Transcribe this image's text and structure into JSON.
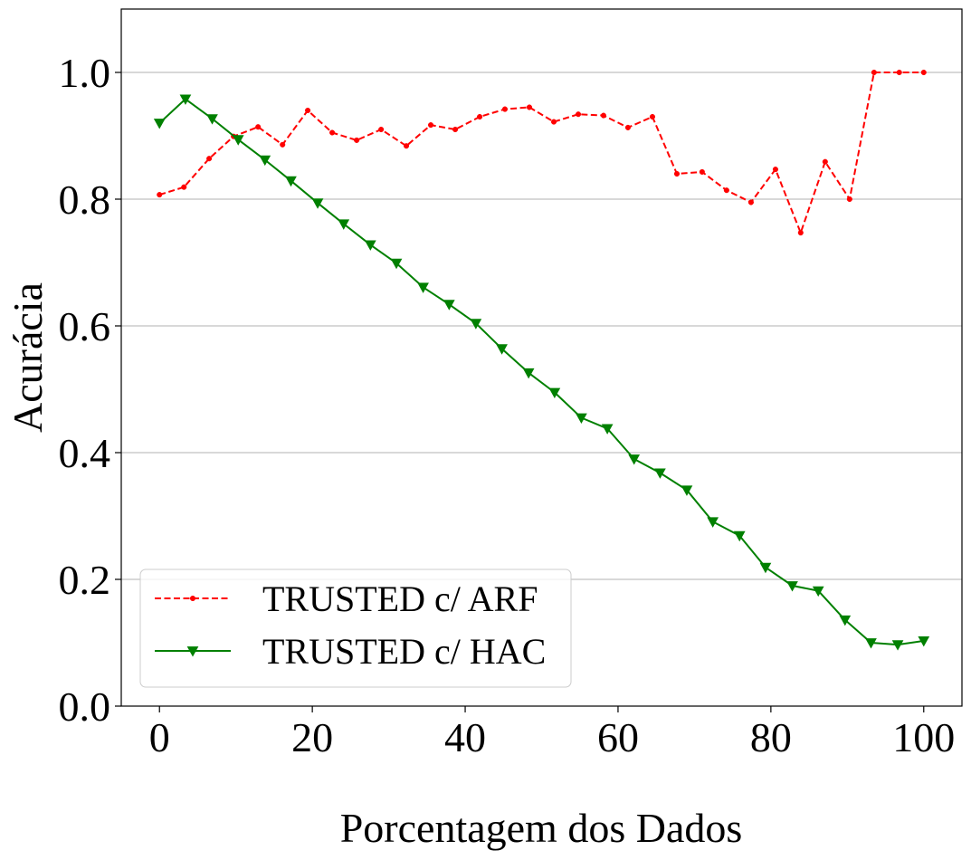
{
  "chart_data": {
    "type": "line",
    "xlabel": "Porcentagem dos Dados",
    "ylabel": "Acurácia",
    "xlim": [
      -5,
      105
    ],
    "ylim": [
      0.0,
      1.1
    ],
    "xticks": [
      0,
      20,
      40,
      60,
      80,
      100
    ],
    "xtick_labels": [
      "0",
      "20",
      "40",
      "60",
      "80",
      "100"
    ],
    "yticks": [
      0.0,
      0.2,
      0.4,
      0.6,
      0.8,
      1.0
    ],
    "ytick_labels": [
      "0.0",
      "0.2",
      "0.4",
      "0.6",
      "0.8",
      "1.0"
    ],
    "grid": "horizontal",
    "legend_position": "lower-left",
    "series": [
      {
        "name": "TRUSTED c/ ARF",
        "color": "#ff0000",
        "line_style": "dashed",
        "marker": "dot",
        "x": [
          0,
          3.2,
          6.5,
          9.7,
          12.9,
          16.1,
          19.4,
          22.6,
          25.8,
          29.0,
          32.3,
          35.5,
          38.7,
          41.9,
          45.2,
          48.4,
          51.6,
          54.8,
          58.1,
          61.3,
          64.5,
          67.7,
          71.0,
          74.2,
          77.4,
          80.6,
          83.9,
          87.1,
          90.3,
          93.5,
          96.8,
          100
        ],
        "y": [
          0.807,
          0.819,
          0.864,
          0.899,
          0.914,
          0.886,
          0.94,
          0.905,
          0.893,
          0.91,
          0.884,
          0.917,
          0.91,
          0.93,
          0.942,
          0.945,
          0.922,
          0.934,
          0.932,
          0.913,
          0.93,
          0.84,
          0.843,
          0.814,
          0.795,
          0.847,
          0.747,
          0.859,
          0.8,
          1.0,
          1.0,
          1.0
        ]
      },
      {
        "name": "TRUSTED c/ HAC",
        "color": "#008000",
        "line_style": "solid",
        "marker": "triangle-down",
        "x": [
          0,
          3.4,
          6.9,
          10.3,
          13.8,
          17.2,
          20.7,
          24.1,
          27.6,
          31.0,
          34.5,
          37.9,
          41.4,
          44.8,
          48.3,
          51.7,
          55.2,
          58.6,
          62.1,
          65.5,
          69.0,
          72.4,
          75.9,
          79.3,
          82.8,
          86.2,
          89.7,
          93.1,
          96.6,
          100
        ],
        "y": [
          0.92,
          0.958,
          0.927,
          0.894,
          0.862,
          0.829,
          0.794,
          0.761,
          0.728,
          0.699,
          0.661,
          0.634,
          0.604,
          0.564,
          0.526,
          0.495,
          0.455,
          0.438,
          0.39,
          0.368,
          0.341,
          0.291,
          0.269,
          0.219,
          0.19,
          0.182,
          0.136,
          0.1,
          0.097,
          0.103
        ]
      }
    ]
  }
}
